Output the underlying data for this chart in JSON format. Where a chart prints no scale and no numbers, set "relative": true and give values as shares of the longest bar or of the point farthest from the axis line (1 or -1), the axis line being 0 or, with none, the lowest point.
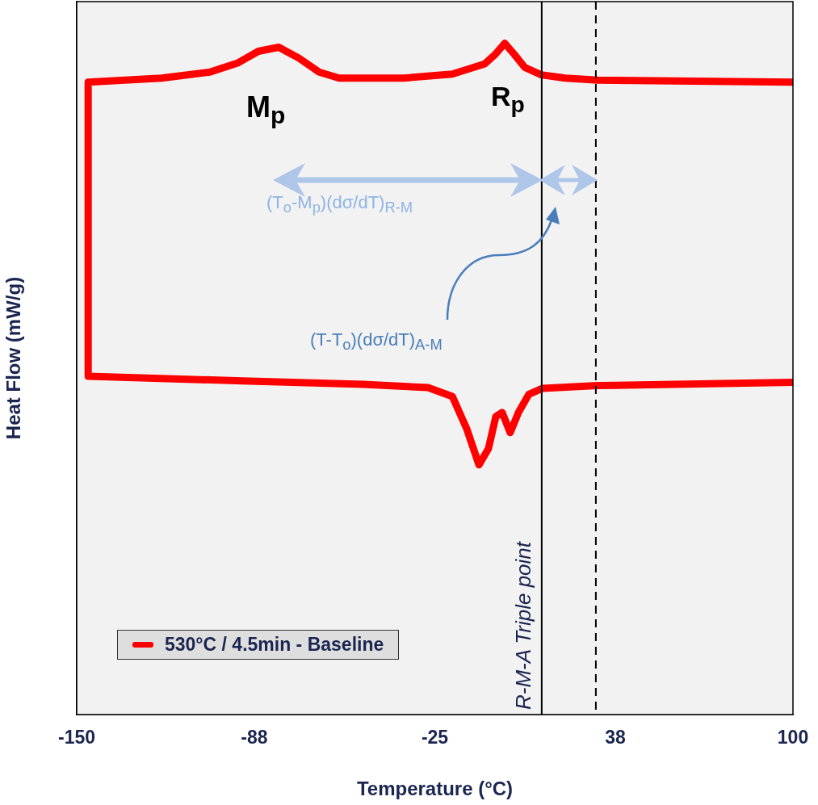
{
  "chart_data": {
    "type": "line",
    "xlabel": "Temperature (°C)",
    "ylabel": "Heat Flow (mW/g)",
    "relative": true,
    "xlim": [
      -150,
      100
    ],
    "xticks": [
      -150,
      -88,
      -25,
      38,
      100
    ],
    "grid": false,
    "legend": "bottom left",
    "marker": "none",
    "line_style": "solid",
    "series": [
      {
        "name": "530°C / 4.5min - Baseline",
        "color": "#ff0000",
        "x": [
          100,
          31.8,
          20.5,
          12.1,
          6.4,
          2.8,
          -0.6,
          -4.0,
          -7.7,
          -18.9,
          -35.9,
          -58.4,
          -65.4,
          -72.5,
          -79.5,
          -86.6,
          -93.6,
          -103.5,
          -120.4,
          -146,
          -146,
          -92.2,
          -50,
          -27.4,
          -18.9,
          -13.9,
          -9.6,
          -6.3,
          -3.7,
          -1.5,
          1.3,
          4.2,
          7.8,
          12.6,
          31.8,
          100
        ],
        "values": [
          0.942,
          0.945,
          0.948,
          0.953,
          0.964,
          0.983,
          1.0,
          0.983,
          0.969,
          0.954,
          0.948,
          0.948,
          0.957,
          0.978,
          0.994,
          0.988,
          0.971,
          0.957,
          0.948,
          0.942,
          0.504,
          0.497,
          0.492,
          0.487,
          0.474,
          0.426,
          0.372,
          0.396,
          0.444,
          0.45,
          0.42,
          0.45,
          0.477,
          0.486,
          0.49,
          0.495
        ]
      }
    ],
    "ref_lines": [
      {
        "axis": "x",
        "value": 12.3,
        "label": "R-M-A Triple point",
        "color": "#000000",
        "line_style": "solid"
      },
      {
        "axis": "x",
        "value": 31.2,
        "color": "#000000",
        "line_style": "dashed"
      }
    ],
    "annotations": [
      "M$_{p}$",
      "R$_{p}$",
      "(T$_{o}$-M$_{p}$)(dσ/dT)$_{R-M}$",
      "(T-T$_{o}$)(dσ/dT)$_{A-M}$"
    ]
  }
}
